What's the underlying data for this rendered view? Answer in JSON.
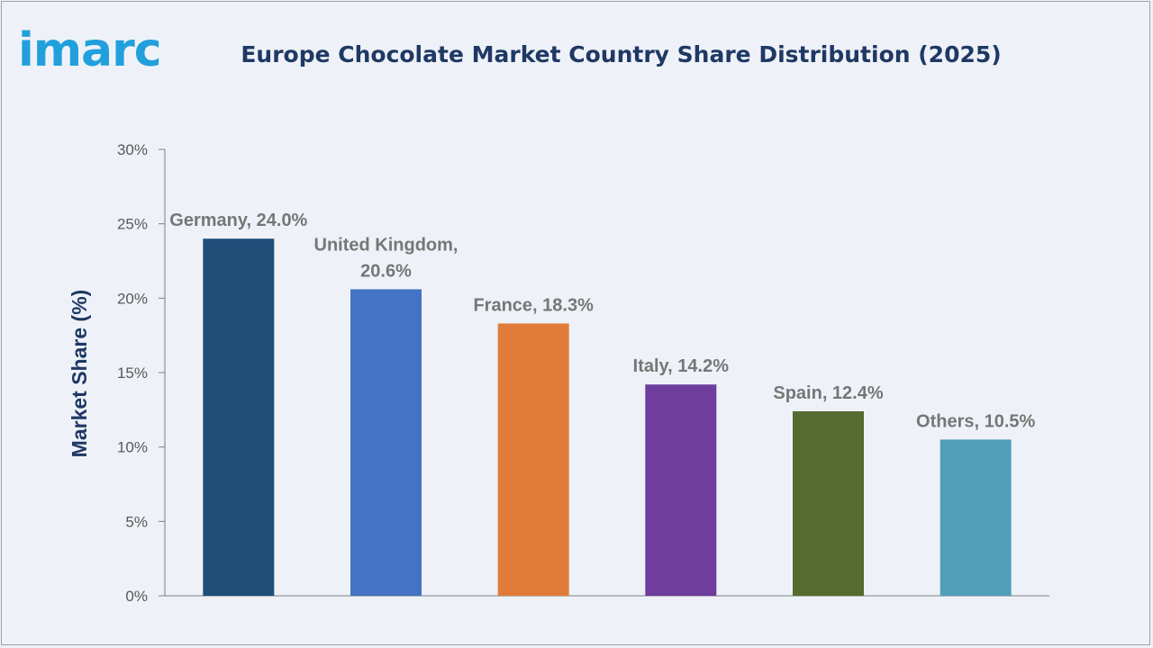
{
  "brand": {
    "logo_text": "imarc",
    "color": "#21a0dc"
  },
  "header": {
    "title": "Europe Chocolate Market Country Share Distribution (2025)"
  },
  "chart_data": {
    "type": "bar",
    "title": "Europe Chocolate Market Country Share Distribution (2025)",
    "xlabel": "",
    "ylabel": "Market Share (%)",
    "categories": [
      "Germany",
      "United Kingdom",
      "France",
      "Italy",
      "Spain",
      "Others"
    ],
    "values": [
      24.0,
      20.6,
      18.3,
      14.2,
      12.4,
      10.5
    ],
    "data_labels": [
      [
        "Germany, 24.0%"
      ],
      [
        "United Kingdom,",
        "20.6%"
      ],
      [
        "France, 18.3%"
      ],
      [
        "Italy, 14.2%"
      ],
      [
        "Spain, 12.4%"
      ],
      [
        "Others, 10.5%"
      ]
    ],
    "colors": [
      "#1f4e79",
      "#4472c4",
      "#e07b39",
      "#6e3d9e",
      "#556b2f",
      "#4f9fb8"
    ],
    "yticks": [
      "0%",
      "5%",
      "10%",
      "15%",
      "20%",
      "25%",
      "30%"
    ],
    "ylim": [
      0,
      30
    ],
    "grid": false,
    "legend": "none"
  }
}
